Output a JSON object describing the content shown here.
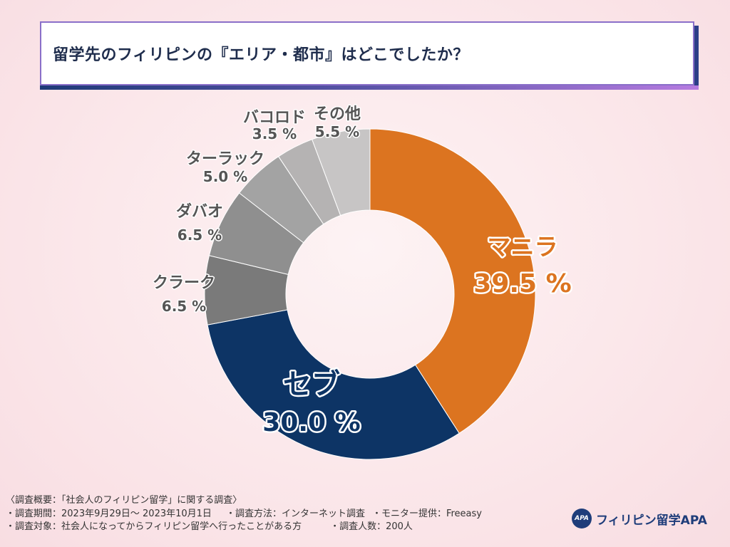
{
  "title": "留学先のフィリピンの『エリア・都市』はどこでしたか？",
  "chart_data": {
    "type": "pie",
    "variant": "donut",
    "title": "留学先のフィリピンの『エリア・都市』はどこでしたか？",
    "categories": [
      "マニラ",
      "セブ",
      "クラーク",
      "ダバオ",
      "ターラック",
      "バコロド",
      "その他"
    ],
    "values": [
      39.5,
      30.0,
      6.5,
      6.5,
      5.0,
      3.5,
      5.5
    ],
    "value_labels": [
      "39.5 %",
      "30.0 %",
      "6.5 %",
      "6.5 %",
      "5.0 %",
      "3.5 %",
      "5.5 %"
    ],
    "colors": [
      "#dc7420",
      "#0d3465",
      "#7a7a7a",
      "#8f8f8f",
      "#a3a3a3",
      "#b5b3b3",
      "#c7c5c5"
    ],
    "unit": "%"
  },
  "footer": {
    "line1": "〈調査概要：「社会人のフィリピン留学」に関する調査〉",
    "period": "・調査期間：2023年9月29日〜 2023年10月1日",
    "method": "・調査方法：インターネット調査",
    "monitor": "・モニター提供：Freeasy",
    "target": "・調査対象：社会人になってからフィリピン留学へ行ったことがある方",
    "count": "・調査人数：200人"
  },
  "brand": {
    "logo_text": "APA",
    "name": "フィリピン留学APA"
  }
}
